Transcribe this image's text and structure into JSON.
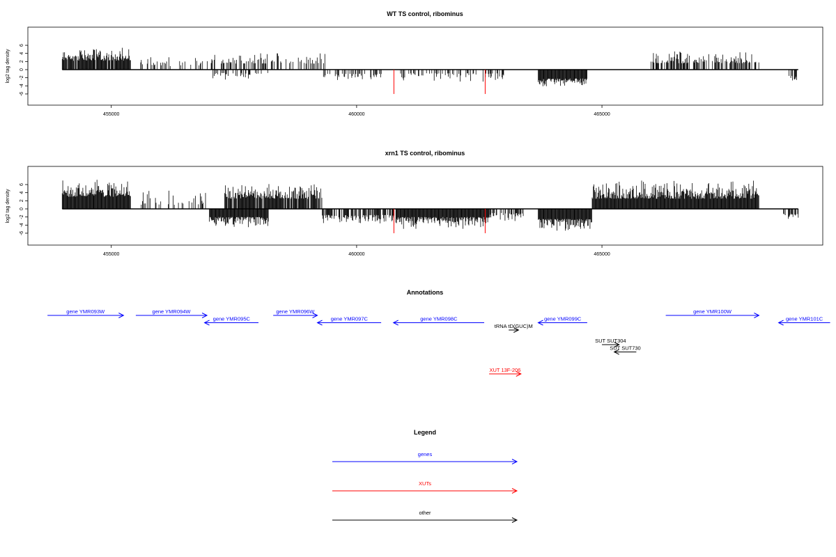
{
  "chart_data": [
    {
      "type": "bar",
      "title": "WT TS control, ribominus",
      "ylabel": "log2 tag density",
      "xlim": [
        453300,
        469500
      ],
      "ylim": [
        -6,
        8
      ],
      "x_ticks": [
        455000,
        460000,
        465000
      ],
      "x_tick_labels": [
        "455000",
        "460000",
        "465000"
      ],
      "y_ticks": [
        6,
        4,
        2,
        0,
        -2,
        -4,
        -6
      ],
      "y_tick_labels": [
        "6",
        "4",
        "2",
        "0",
        "-2",
        "-4",
        "-6"
      ],
      "grid": false,
      "bar_color": "#000000",
      "highlight_color": "#ff0000",
      "positive_regions": [
        {
          "from": 454000,
          "to": 455400,
          "density": 0.95,
          "max": 5.5,
          "base": 2.2
        },
        {
          "from": 455600,
          "to": 457000,
          "density": 0.22,
          "max": 3.5,
          "base": 0.8
        },
        {
          "from": 457000,
          "to": 459400,
          "density": 0.4,
          "max": 4.2,
          "base": 1.5
        },
        {
          "from": 466000,
          "to": 468200,
          "density": 0.6,
          "max": 4.6,
          "base": 1.6
        }
      ],
      "negative_regions": [
        {
          "from": 457000,
          "to": 458200,
          "density": 0.25,
          "max": 2.5,
          "base": 0.8
        },
        {
          "from": 459300,
          "to": 460500,
          "density": 0.4,
          "max": 3.0,
          "base": 1.0
        },
        {
          "from": 460800,
          "to": 463000,
          "density": 0.35,
          "max": 3.0,
          "base": 0.9
        },
        {
          "from": 463700,
          "to": 464700,
          "density": 1.0,
          "max": 4.2,
          "base": 2.2
        },
        {
          "from": 468800,
          "to": 469000,
          "density": 0.6,
          "max": 2.8,
          "base": 1.5
        }
      ],
      "highlights": [
        {
          "x": 460760,
          "y": -6
        },
        {
          "x": 462620,
          "y": -6
        }
      ]
    },
    {
      "type": "bar",
      "title": "xrn1 TS control, ribominus",
      "ylabel": "log2 tag density",
      "xlim": [
        453300,
        469500
      ],
      "ylim": [
        -6,
        8
      ],
      "x_ticks": [
        455000,
        460000,
        465000
      ],
      "x_tick_labels": [
        "455000",
        "460000",
        "465000"
      ],
      "y_ticks": [
        6,
        4,
        2,
        0,
        -2,
        -4,
        -6
      ],
      "y_tick_labels": [
        "6",
        "4",
        "2",
        "0",
        "-2",
        "-4",
        "-6"
      ],
      "grid": false,
      "bar_color": "#000000",
      "highlight_color": "#ff0000",
      "positive_regions": [
        {
          "from": 454000,
          "to": 455400,
          "density": 1.0,
          "max": 7.3,
          "base": 3.0
        },
        {
          "from": 455600,
          "to": 457000,
          "density": 0.28,
          "max": 5.0,
          "base": 1.0
        },
        {
          "from": 457300,
          "to": 459300,
          "density": 0.9,
          "max": 6.4,
          "base": 2.5
        },
        {
          "from": 464800,
          "to": 468200,
          "density": 1.0,
          "max": 7.1,
          "base": 2.5
        }
      ],
      "negative_regions": [
        {
          "from": 457000,
          "to": 458200,
          "density": 1.0,
          "max": 4.5,
          "base": 2.0
        },
        {
          "from": 459300,
          "to": 460800,
          "density": 0.7,
          "max": 3.6,
          "base": 1.5
        },
        {
          "from": 460800,
          "to": 462700,
          "density": 1.0,
          "max": 5.0,
          "base": 2.0
        },
        {
          "from": 462700,
          "to": 463400,
          "density": 0.5,
          "max": 3.0,
          "base": 1.0
        },
        {
          "from": 463700,
          "to": 464800,
          "density": 1.0,
          "max": 6.0,
          "base": 2.5
        },
        {
          "from": 468700,
          "to": 469000,
          "density": 0.6,
          "max": 2.5,
          "base": 1.2
        }
      ],
      "highlights": [
        {
          "x": 460760,
          "y": -6
        },
        {
          "x": 462620,
          "y": -6
        }
      ]
    }
  ],
  "annotations": {
    "title": "Annotations",
    "features": [
      {
        "label": "gene YMR093W",
        "from": 453700,
        "to": 455250,
        "strand": "+",
        "color": "#0000ff",
        "row": 0
      },
      {
        "label": "gene YMR094W",
        "from": 455500,
        "to": 456950,
        "strand": "+",
        "color": "#0000ff",
        "row": 0
      },
      {
        "label": "gene YMR095C",
        "from": 456900,
        "to": 458000,
        "strand": "-",
        "color": "#0000ff",
        "row": 1
      },
      {
        "label": "gene YMR096W",
        "from": 458300,
        "to": 459200,
        "strand": "+",
        "color": "#0000ff",
        "row": 0
      },
      {
        "label": "gene YMR097C",
        "from": 459200,
        "to": 460500,
        "strand": "-",
        "color": "#0000ff",
        "row": 1
      },
      {
        "label": "gene YMR098C",
        "from": 460750,
        "to": 462600,
        "strand": "-",
        "color": "#0000ff",
        "row": 1
      },
      {
        "label": "tRNA tD(GUC)M",
        "from": 463100,
        "to": 463300,
        "strand": "+",
        "color": "#000000",
        "row": 2
      },
      {
        "label": "gene YMR099C",
        "from": 463700,
        "to": 464700,
        "strand": "-",
        "color": "#0000ff",
        "row": 1
      },
      {
        "label": "SUT SUT304",
        "from": 465000,
        "to": 465350,
        "strand": "+",
        "color": "#000000",
        "row": 4
      },
      {
        "label": "SUT SUT730",
        "from": 465250,
        "to": 465700,
        "strand": "-",
        "color": "#000000",
        "row": 5
      },
      {
        "label": "gene YMR100W",
        "from": 466300,
        "to": 468200,
        "strand": "+",
        "color": "#0000ff",
        "row": 0
      },
      {
        "label": "gene YMR101C",
        "from": 468600,
        "to": 469650,
        "strand": "-",
        "color": "#0000ff",
        "row": 1
      },
      {
        "label": "XUT 13F-206",
        "from": 462700,
        "to": 463350,
        "strand": "+",
        "color": "#ff0000",
        "row": 8
      }
    ]
  },
  "legend": {
    "title": "Legend",
    "items": [
      {
        "label": "genes",
        "color": "#0000ff"
      },
      {
        "label": "XUTs",
        "color": "#ff0000"
      },
      {
        "label": "other",
        "color": "#000000"
      }
    ]
  }
}
